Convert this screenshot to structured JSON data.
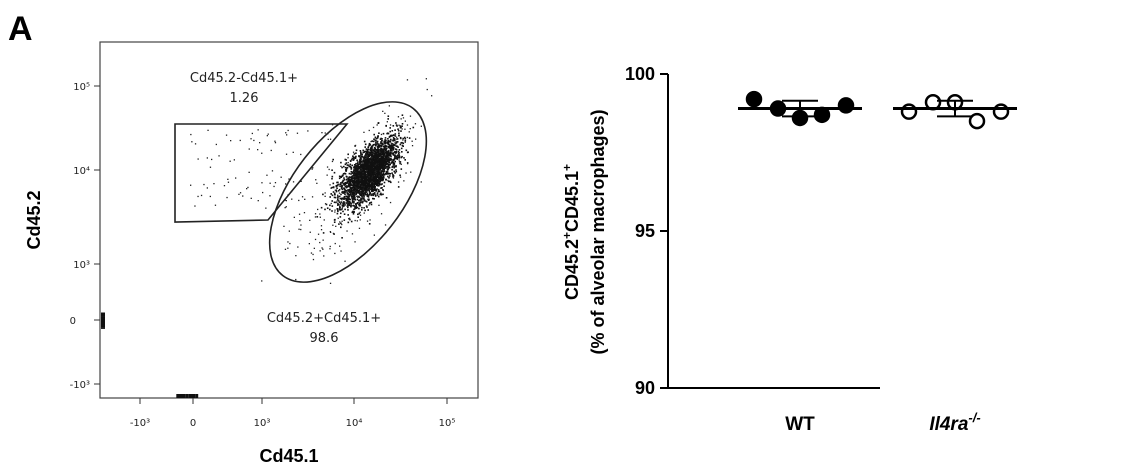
{
  "panel_label": "A",
  "chart_data": [
    {
      "type": "scatter",
      "subtype": "flow-cytometry",
      "xlabel": "Cd45.1",
      "ylabel": "Cd45.2",
      "x_ticks": [
        "-10³",
        "0",
        "10³",
        "10⁴",
        "10⁵"
      ],
      "y_ticks": [
        "10⁵",
        "10⁴",
        "10³",
        "0",
        "-10³"
      ],
      "scale": "biexponential",
      "gates": [
        {
          "name": "Cd45.2-Cd45.1+",
          "value": "1.26",
          "shape": "polygon"
        },
        {
          "name": "Cd45.2+Cd45.1+",
          "value": "98.6",
          "shape": "ellipse"
        }
      ]
    },
    {
      "type": "scatter",
      "subtype": "dot-plot",
      "categories": [
        "WT",
        "Il4ra-/-"
      ],
      "ylabel_line1": "CD45.2",
      "ylabel_sup1": "+",
      "ylabel_mid": "CD45.1",
      "ylabel_sup2": "+",
      "ylabel_line2": "(% of alveolar macrophages)",
      "ylim": [
        90,
        100
      ],
      "yticks": [
        "90",
        "95",
        "100"
      ],
      "series": [
        {
          "category": "WT",
          "marker": "filled",
          "values": [
            99.2,
            98.9,
            98.6,
            98.7,
            99.0
          ],
          "mean": 98.9,
          "sd": 0.25
        },
        {
          "category": "Il4ra-/-",
          "marker": "open",
          "values": [
            98.8,
            99.1,
            99.1,
            98.5,
            98.8
          ],
          "mean": 98.9,
          "sd": 0.25
        }
      ],
      "category_label_wt": "WT",
      "category_label_ko_base": "Il4ra",
      "category_label_ko_sup": "-/-"
    }
  ]
}
